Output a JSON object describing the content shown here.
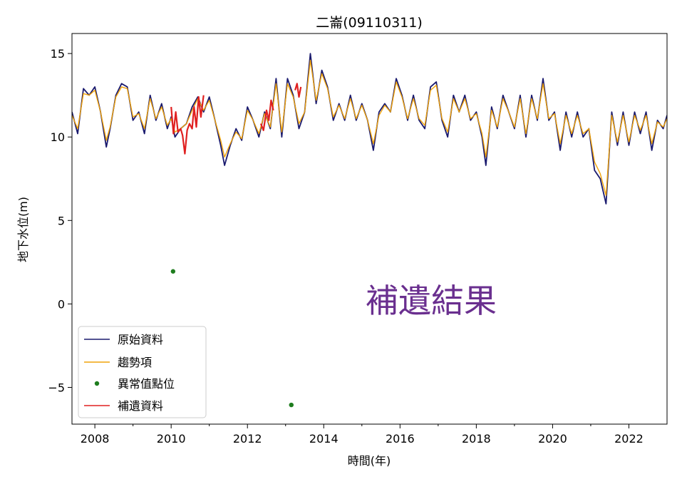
{
  "chart_data": {
    "type": "line",
    "title": "二崙(09110311)",
    "xlabel": "時間(年)",
    "ylabel": "地下水位(m)",
    "xlim": [
      2007.4,
      2023.0
    ],
    "ylim": [
      -7.2,
      16.2
    ],
    "x_ticks": [
      2008,
      2010,
      2012,
      2014,
      2016,
      2018,
      2020,
      2022
    ],
    "x_tick_labels": [
      "2008",
      "2010",
      "2012",
      "2014",
      "2016",
      "2018",
      "2020",
      "2022"
    ],
    "x_minor_ticks": [
      2009,
      2011,
      2013,
      2015,
      2017,
      2019,
      2021
    ],
    "y_ticks": [
      -5,
      0,
      5,
      10,
      15
    ],
    "y_tick_labels": [
      "−5",
      "0",
      "5",
      "10",
      "15"
    ],
    "annotation": "補遺結果",
    "legend": {
      "position": "lower-left",
      "entries": [
        "原始資料",
        "趨勢項",
        "異常值點位",
        "補遺資料"
      ]
    },
    "series": [
      {
        "name": "原始資料",
        "kind": "line",
        "color": "#1a1a6e",
        "x": [
          2007.4,
          2007.55,
          2007.7,
          2007.85,
          2008.0,
          2008.15,
          2008.3,
          2008.4,
          2008.55,
          2008.7,
          2008.85,
          2009.0,
          2009.15,
          2009.3,
          2009.45,
          2009.6,
          2009.75,
          2009.9,
          2010.0,
          2010.1,
          2010.25,
          2010.4,
          2010.55,
          2010.7,
          2010.85,
          2011.0,
          2011.15,
          2011.3,
          2011.4,
          2011.55,
          2011.7,
          2011.85,
          2012.0,
          2012.15,
          2012.3,
          2012.45,
          2012.6,
          2012.75,
          2012.9,
          2013.05,
          2013.2,
          2013.35,
          2013.5,
          2013.65,
          2013.8,
          2013.95,
          2014.1,
          2014.25,
          2014.4,
          2014.55,
          2014.7,
          2014.85,
          2015.0,
          2015.15,
          2015.3,
          2015.45,
          2015.6,
          2015.75,
          2015.9,
          2016.05,
          2016.2,
          2016.35,
          2016.5,
          2016.65,
          2016.8,
          2016.95,
          2017.1,
          2017.25,
          2017.4,
          2017.55,
          2017.7,
          2017.85,
          2018.0,
          2018.15,
          2018.25,
          2018.4,
          2018.55,
          2018.7,
          2018.85,
          2019.0,
          2019.15,
          2019.3,
          2019.45,
          2019.6,
          2019.75,
          2019.9,
          2020.05,
          2020.2,
          2020.35,
          2020.5,
          2020.65,
          2020.8,
          2020.95,
          2021.1,
          2021.25,
          2021.4,
          2021.55,
          2021.7,
          2021.85,
          2022.0,
          2022.15,
          2022.3,
          2022.45,
          2022.6,
          2022.75,
          2022.9,
          2023.0
        ],
        "y": [
          11.5,
          10.2,
          12.9,
          12.5,
          13.0,
          11.5,
          9.4,
          10.5,
          12.5,
          13.2,
          13.0,
          11.0,
          11.5,
          10.2,
          12.5,
          11.0,
          12.0,
          10.5,
          11.2,
          10.0,
          10.5,
          10.8,
          11.8,
          12.4,
          11.5,
          12.4,
          11.0,
          9.5,
          8.3,
          9.5,
          10.5,
          9.8,
          11.8,
          11.0,
          10.0,
          11.5,
          10.5,
          13.5,
          10.0,
          13.5,
          12.5,
          10.5,
          11.5,
          15.0,
          12.0,
          14.0,
          13.0,
          11.0,
          12.0,
          11.0,
          12.5,
          11.0,
          12.0,
          11.0,
          9.2,
          11.5,
          12.0,
          11.5,
          13.5,
          12.5,
          11.0,
          12.5,
          11.0,
          10.5,
          13.0,
          13.3,
          11.0,
          10.0,
          12.5,
          11.5,
          12.5,
          11.0,
          11.5,
          10.0,
          8.3,
          11.8,
          10.5,
          12.5,
          11.5,
          10.5,
          12.5,
          10.0,
          12.5,
          11.0,
          13.5,
          11.0,
          11.5,
          9.2,
          11.5,
          10.0,
          11.5,
          10.0,
          10.5,
          8.0,
          7.5,
          6.0,
          11.5,
          9.5,
          11.5,
          9.5,
          11.5,
          10.2,
          11.5,
          9.2,
          11.0,
          10.5,
          11.3
        ]
      },
      {
        "name": "趨勢項",
        "kind": "line",
        "color": "#f0a30a",
        "x": [
          2007.4,
          2007.55,
          2007.7,
          2007.85,
          2008.0,
          2008.15,
          2008.3,
          2008.4,
          2008.55,
          2008.7,
          2008.85,
          2009.0,
          2009.15,
          2009.3,
          2009.45,
          2009.6,
          2009.75,
          2009.9,
          2010.0,
          2010.1,
          2010.25,
          2010.4,
          2010.55,
          2010.7,
          2010.85,
          2011.0,
          2011.15,
          2011.3,
          2011.4,
          2011.55,
          2011.7,
          2011.85,
          2012.0,
          2012.15,
          2012.3,
          2012.45,
          2012.6,
          2012.75,
          2012.9,
          2013.05,
          2013.2,
          2013.35,
          2013.5,
          2013.65,
          2013.8,
          2013.95,
          2014.1,
          2014.25,
          2014.4,
          2014.55,
          2014.7,
          2014.85,
          2015.0,
          2015.15,
          2015.3,
          2015.45,
          2015.6,
          2015.75,
          2015.9,
          2016.05,
          2016.2,
          2016.35,
          2016.5,
          2016.65,
          2016.8,
          2016.95,
          2017.1,
          2017.25,
          2017.4,
          2017.55,
          2017.7,
          2017.85,
          2018.0,
          2018.15,
          2018.25,
          2018.4,
          2018.55,
          2018.7,
          2018.85,
          2019.0,
          2019.15,
          2019.3,
          2019.45,
          2019.6,
          2019.75,
          2019.9,
          2020.05,
          2020.2,
          2020.35,
          2020.5,
          2020.65,
          2020.8,
          2020.95,
          2021.1,
          2021.25,
          2021.4,
          2021.55,
          2021.7,
          2021.85,
          2022.0,
          2022.15,
          2022.3,
          2022.45,
          2022.6,
          2022.75,
          2022.9,
          2023.0
        ],
        "y": [
          11.3,
          10.5,
          12.6,
          12.5,
          12.8,
          11.5,
          9.8,
          10.6,
          12.4,
          13.0,
          12.9,
          11.2,
          11.4,
          10.5,
          12.3,
          11.1,
          11.8,
          10.7,
          11.1,
          10.3,
          10.5,
          10.8,
          11.6,
          12.3,
          11.6,
          12.2,
          11.0,
          9.8,
          8.8,
          9.6,
          10.3,
          9.9,
          11.6,
          11.0,
          10.2,
          11.4,
          10.6,
          13.2,
          10.3,
          13.2,
          12.4,
          10.8,
          11.5,
          14.6,
          12.2,
          13.8,
          12.9,
          11.2,
          11.9,
          11.1,
          12.3,
          11.1,
          11.9,
          11.0,
          9.6,
          11.3,
          11.9,
          11.5,
          13.3,
          12.4,
          11.1,
          12.3,
          11.1,
          10.7,
          12.8,
          13.1,
          11.1,
          10.3,
          12.3,
          11.5,
          12.3,
          11.1,
          11.4,
          10.2,
          8.8,
          11.6,
          10.6,
          12.3,
          11.5,
          10.6,
          12.3,
          10.2,
          12.3,
          11.1,
          13.2,
          11.1,
          11.4,
          9.6,
          11.3,
          10.2,
          11.3,
          10.2,
          10.5,
          8.5,
          7.8,
          6.5,
          11.3,
          9.7,
          11.3,
          9.7,
          11.3,
          10.4,
          11.3,
          9.6,
          10.9,
          10.6,
          11.1
        ]
      },
      {
        "name": "異常值點位",
        "kind": "scatter",
        "color": "#1e7d1e",
        "x": [
          2010.05,
          2013.15
        ],
        "y": [
          1.95,
          -6.05
        ]
      },
      {
        "name": "補遺資料",
        "kind": "segments",
        "color": "#e02020",
        "segments": [
          {
            "x": [
              2010.0,
              2010.06,
              2010.12,
              2010.18,
              2010.25,
              2010.3,
              2010.36,
              2010.42,
              2010.48,
              2010.55,
              2010.6,
              2010.66,
              2010.72,
              2010.78,
              2010.85
            ],
            "y": [
              11.8,
              10.2,
              11.5,
              10.3,
              10.5,
              10.1,
              9.0,
              10.4,
              10.8,
              10.5,
              11.8,
              10.6,
              12.4,
              11.2,
              12.5
            ]
          },
          {
            "x": [
              2012.35,
              2012.42,
              2012.5,
              2012.56,
              2012.62,
              2012.68
            ],
            "y": [
              10.8,
              10.4,
              11.6,
              11.0,
              12.2,
              11.6
            ]
          },
          {
            "x": [
              2013.25,
              2013.3,
              2013.35,
              2013.4
            ],
            "y": [
              12.8,
              13.2,
              12.4,
              13.0
            ]
          }
        ]
      }
    ]
  }
}
